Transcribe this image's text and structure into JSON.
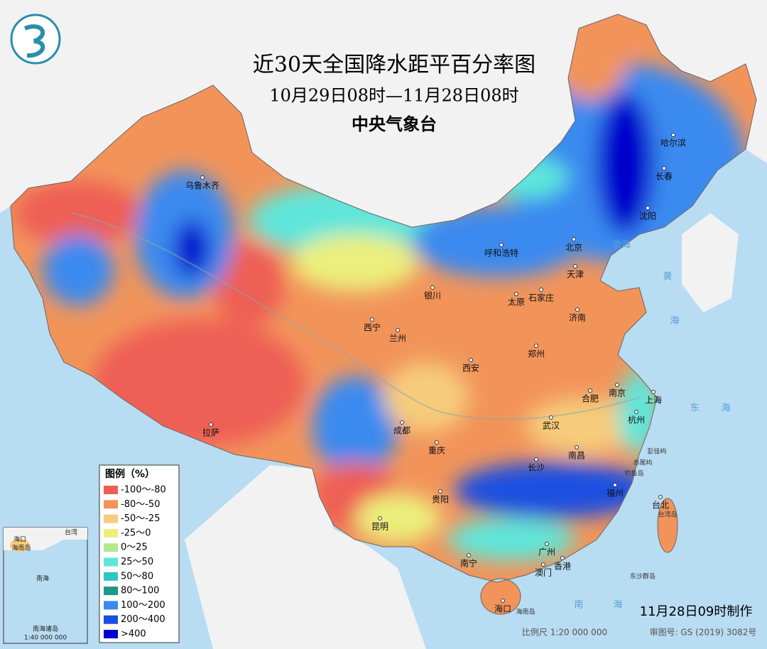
{
  "header": {
    "title": "近30天全国降水距平百分率图",
    "subtitle": "10月29日08时—11月28日08时",
    "issuer": "中央气象台"
  },
  "legend": {
    "title": "图例（%）",
    "items": [
      {
        "label": "-100～-80",
        "color": "#ee5e55"
      },
      {
        "label": "-80～-50",
        "color": "#f2945a"
      },
      {
        "label": "-50～-25",
        "color": "#f6cc7c"
      },
      {
        "label": "-25～0",
        "color": "#ecef7c"
      },
      {
        "label": "0～25",
        "color": "#b2ea90"
      },
      {
        "label": "25～50",
        "color": "#5ee6da"
      },
      {
        "label": "50～80",
        "color": "#2fc4c6"
      },
      {
        "label": "80～100",
        "color": "#1a9888"
      },
      {
        "label": "100～200",
        "color": "#3a8af0"
      },
      {
        "label": "200～400",
        "color": "#1c4fe0"
      },
      {
        "label": ">400",
        "color": "#0000cc"
      }
    ]
  },
  "cities": [
    "乌鲁木齐",
    "拉萨",
    "西宁",
    "兰州",
    "银川",
    "呼和浩特",
    "北京",
    "天津",
    "石家庄",
    "太原",
    "济南",
    "哈尔滨",
    "长春",
    "沈阳",
    "西安",
    "郑州",
    "成都",
    "重庆",
    "武汉",
    "合肥",
    "南京",
    "上海",
    "杭州",
    "南昌",
    "长沙",
    "贵阳",
    "昆明",
    "南宁",
    "广州",
    "香港",
    "澳门",
    "福州",
    "台北",
    "海口"
  ],
  "seas": [
    "渤海",
    "黄",
    "海",
    "东",
    "海",
    "南",
    "海",
    "台湾岛",
    "海南岛",
    "钓鱼岛",
    "赤尾屿",
    "彭佳屿",
    "东沙群岛"
  ],
  "inset": {
    "labels": [
      "南海诸岛",
      "1:40 000 000",
      "海口",
      "海南岛",
      "南海",
      "台湾"
    ]
  },
  "footer": {
    "made": "11月28日09时制作",
    "scale": "比例尺 1:20 000 000",
    "approval": "审图号: GS (2019) 3082号"
  }
}
